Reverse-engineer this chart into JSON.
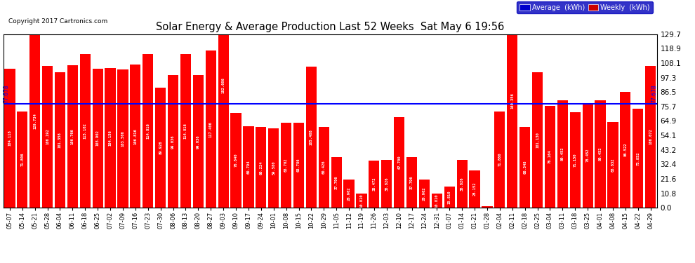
{
  "title": "Solar Energy & Average Production Last 52 Weeks  Sat May 6 19:56",
  "copyright": "Copyright 2017 Cartronics.com",
  "average_line": 77.678,
  "bar_color": "#FF0000",
  "average_color": "#0000FF",
  "background_color": "#FFFFFF",
  "grid_color": "#BBBBBB",
  "ylim": [
    0.0,
    129.7
  ],
  "yticks": [
    0.0,
    10.8,
    21.6,
    32.4,
    43.2,
    54.1,
    64.9,
    75.7,
    86.5,
    97.3,
    108.1,
    118.9,
    129.7
  ],
  "categories": [
    "05-07",
    "05-14",
    "05-21",
    "05-28",
    "06-04",
    "06-11",
    "06-18",
    "06-25",
    "07-02",
    "07-09",
    "07-16",
    "07-23",
    "07-30",
    "08-06",
    "08-13",
    "08-20",
    "08-27",
    "09-03",
    "09-10",
    "09-17",
    "09-24",
    "10-01",
    "10-08",
    "10-15",
    "10-22",
    "10-29",
    "11-05",
    "11-12",
    "11-19",
    "11-26",
    "12-03",
    "12-10",
    "12-17",
    "12-24",
    "12-31",
    "01-07",
    "01-14",
    "01-21",
    "01-28",
    "02-04",
    "02-11",
    "02-18",
    "02-25",
    "03-04",
    "03-11",
    "03-18",
    "03-25",
    "04-01",
    "04-08",
    "04-15",
    "04-22",
    "04-29"
  ],
  "values": [
    104.118,
    71.806,
    129.734,
    106.192,
    101.358,
    106.766,
    115.102,
    103.902,
    104.156,
    103.506,
    106.816,
    114.816,
    89.926,
    99.036,
    114.816,
    99.036,
    117.406,
    182.606,
    70.84,
    60.794,
    60.224,
    59.58,
    63.702,
    63.786,
    105.408,
    60.426,
    37.796,
    20.902,
    10.81,
    35.472,
    35.826,
    67.7,
    37.796,
    20.902,
    10.81,
    15.81,
    35.826,
    28.152,
    1.312,
    71.86,
    160.356,
    60.348,
    101.13,
    76.164,
    80.452,
    71.15,
    78.452,
    80.452,
    63.832,
    86.522,
    73.852,
    106.072
  ],
  "legend_avg_text": "Average  (kWh)",
  "legend_weekly_text": "Weekly  (kWh)",
  "legend_avg_bg": "#0000CC",
  "legend_weekly_bg": "#CC0000"
}
